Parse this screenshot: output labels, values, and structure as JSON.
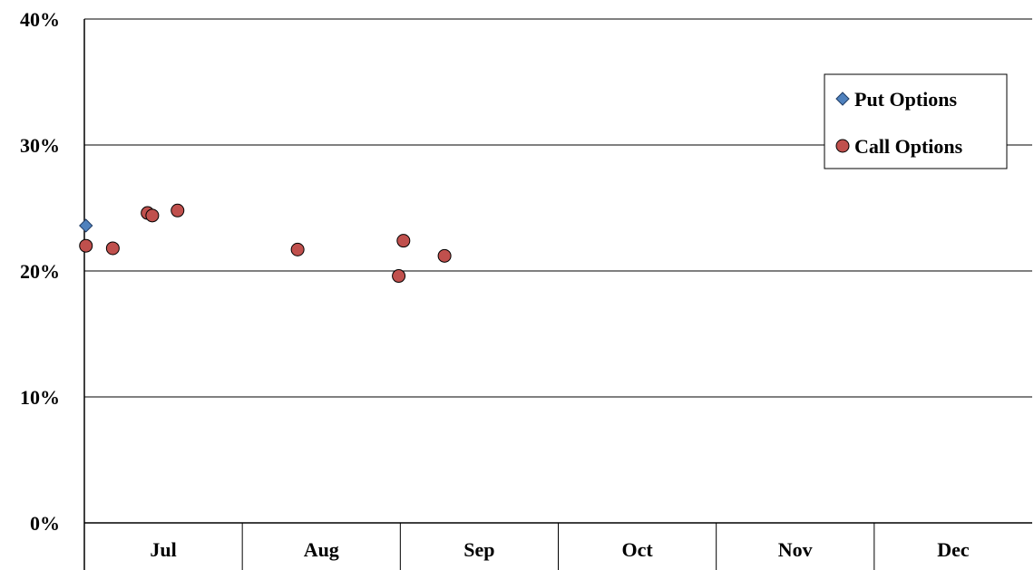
{
  "chart_data": {
    "type": "scatter",
    "title": "",
    "xlabel": "",
    "ylabel": "",
    "categories": [
      "Jul",
      "Aug",
      "Sep",
      "Oct",
      "Nov",
      "Dec"
    ],
    "x_unit": "month-index (0 = start of Jul, 6 = end of Dec)",
    "ylim": [
      0,
      40
    ],
    "y_ticks": [
      "0%",
      "10%",
      "20%",
      "30%",
      "40%"
    ],
    "y_tick_values": [
      0,
      10,
      20,
      30,
      40
    ],
    "grid": true,
    "legend_position": "top-right",
    "series": [
      {
        "name": "Put Options",
        "marker": "diamond",
        "color": "#4f81bd",
        "points": [
          {
            "x": 0.01,
            "y": 23.6
          }
        ]
      },
      {
        "name": "Call Options",
        "marker": "circle",
        "color": "#c0504d",
        "points": [
          {
            "x": 0.01,
            "y": 22.0
          },
          {
            "x": 0.18,
            "y": 21.8
          },
          {
            "x": 0.4,
            "y": 24.6
          },
          {
            "x": 0.43,
            "y": 24.4
          },
          {
            "x": 0.59,
            "y": 24.8
          },
          {
            "x": 1.35,
            "y": 21.7
          },
          {
            "x": 1.99,
            "y": 19.6
          },
          {
            "x": 2.02,
            "y": 22.4
          },
          {
            "x": 2.28,
            "y": 21.2
          }
        ]
      }
    ]
  }
}
